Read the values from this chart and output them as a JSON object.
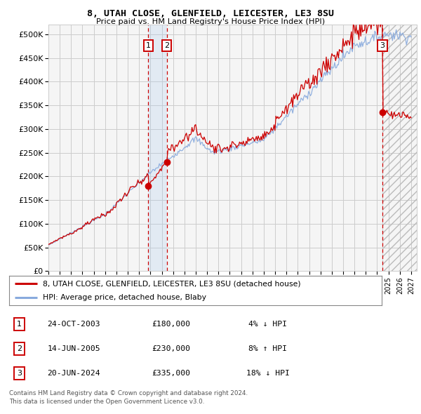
{
  "title": "8, UTAH CLOSE, GLENFIELD, LEICESTER, LE3 8SU",
  "subtitle": "Price paid vs. HM Land Registry's House Price Index (HPI)",
  "ylabel_ticks": [
    "£0",
    "£50K",
    "£100K",
    "£150K",
    "£200K",
    "£250K",
    "£300K",
    "£350K",
    "£400K",
    "£450K",
    "£500K"
  ],
  "ytick_vals": [
    0,
    50000,
    100000,
    150000,
    200000,
    250000,
    300000,
    350000,
    400000,
    450000,
    500000
  ],
  "ylim": [
    0,
    520000
  ],
  "xlim_start": 1995.0,
  "xlim_end": 2027.5,
  "grid_color": "#cccccc",
  "hpi_line_color": "#88aadd",
  "price_line_color": "#cc0000",
  "sale_marker_color": "#cc0000",
  "transactions": [
    {
      "date": 2003.82,
      "price": 180000,
      "label": "1"
    },
    {
      "date": 2005.45,
      "price": 230000,
      "label": "2"
    },
    {
      "date": 2024.47,
      "price": 335000,
      "label": "3"
    }
  ],
  "transaction_box_color": "#cc0000",
  "shaded_region": [
    2003.82,
    2005.45
  ],
  "hatch_region_start": 2024.47,
  "legend_line1": "8, UTAH CLOSE, GLENFIELD, LEICESTER, LE3 8SU (detached house)",
  "legend_line2": "HPI: Average price, detached house, Blaby",
  "table_rows": [
    {
      "num": "1",
      "date": "24-OCT-2003",
      "price": "£180,000",
      "pct": "4% ↓ HPI"
    },
    {
      "num": "2",
      "date": "14-JUN-2005",
      "price": "£230,000",
      "pct": "8% ↑ HPI"
    },
    {
      "num": "3",
      "date": "20-JUN-2024",
      "price": "£335,000",
      "pct": "18% ↓ HPI"
    }
  ],
  "footnote": "Contains HM Land Registry data © Crown copyright and database right 2024.\nThis data is licensed under the Open Government Licence v3.0.",
  "background_color": "#ffffff",
  "plot_bg_color": "#f5f5f5"
}
